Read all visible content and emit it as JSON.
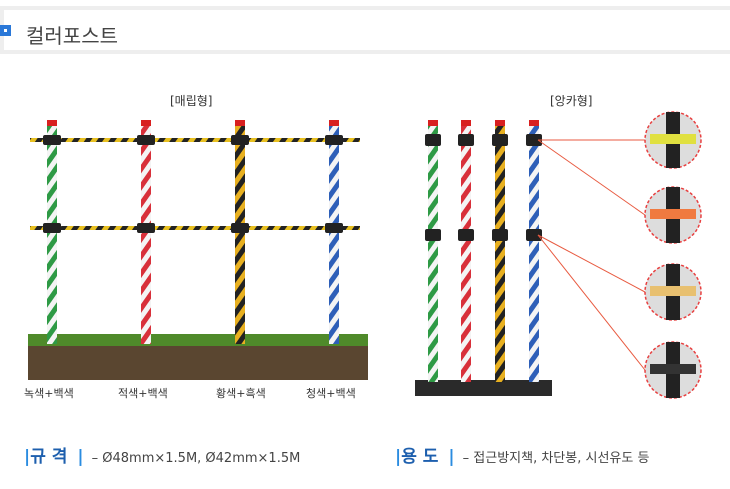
{
  "header": {
    "title": "컬러포스트",
    "accent": "#2a78d8"
  },
  "buried": {
    "label": "[매립형]",
    "posts": [
      {
        "label": "녹색+백색",
        "color": "#2e9a45"
      },
      {
        "label": "적색+백색",
        "color": "#d8303a"
      },
      {
        "label": "황색+흑색",
        "color": "#222222"
      },
      {
        "label": "청색+백색",
        "color": "#2e5fb8"
      }
    ]
  },
  "anchor": {
    "label": "[앙카형]",
    "posts": [
      {
        "color": "#2e9a45"
      },
      {
        "color": "#d8303a"
      },
      {
        "color": "#222222"
      },
      {
        "color": "#2e5fb8"
      }
    ]
  },
  "spec": {
    "heading": "규 격",
    "text": "– Ø48mm×1.5M, Ø42mm×1.5M"
  },
  "usage": {
    "heading": "용 도",
    "text": "– 접근방지책, 차단봉, 시선유도 등"
  }
}
